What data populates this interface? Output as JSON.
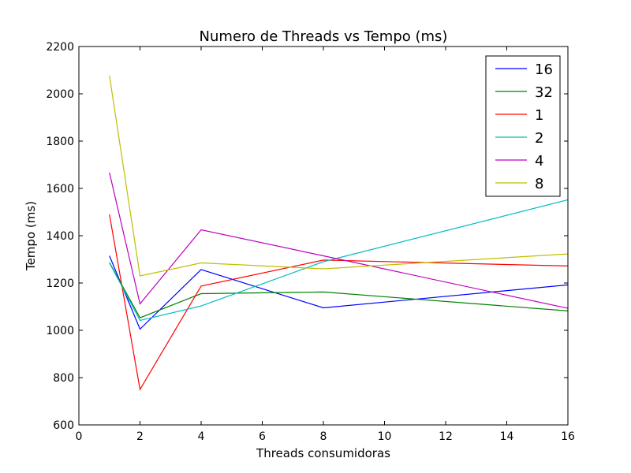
{
  "chart_data": {
    "type": "line",
    "title": "Numero de Threads vs Tempo (ms)",
    "xlabel": "Threads consumidoras",
    "ylabel": "Tempo (ms)",
    "xlim": [
      0,
      16
    ],
    "ylim": [
      600,
      2200
    ],
    "xticks": [
      0,
      2,
      4,
      6,
      8,
      10,
      12,
      14,
      16
    ],
    "yticks": [
      600,
      800,
      1000,
      1200,
      1400,
      1600,
      1800,
      2000,
      2200
    ],
    "grid": false,
    "legend_position": "top-right",
    "x": [
      1,
      2,
      4,
      8,
      16
    ],
    "series": [
      {
        "name": "16",
        "color": "#0000ff",
        "values": [
          1315,
          1005,
          1257,
          1095,
          1192
        ]
      },
      {
        "name": "32",
        "color": "#008000",
        "values": [
          1287,
          1053,
          1155,
          1162,
          1082
        ]
      },
      {
        "name": "1",
        "color": "#ff0000",
        "values": [
          1490,
          750,
          1187,
          1297,
          1272
        ]
      },
      {
        "name": "2",
        "color": "#00bfbf",
        "values": [
          1285,
          1042,
          1103,
          1290,
          1552
        ]
      },
      {
        "name": "4",
        "color": "#bf00bf",
        "values": [
          1667,
          1112,
          1425,
          1315,
          1093
        ]
      },
      {
        "name": "8",
        "color": "#bfbf00",
        "values": [
          2077,
          1230,
          1285,
          1260,
          1323
        ]
      }
    ]
  }
}
